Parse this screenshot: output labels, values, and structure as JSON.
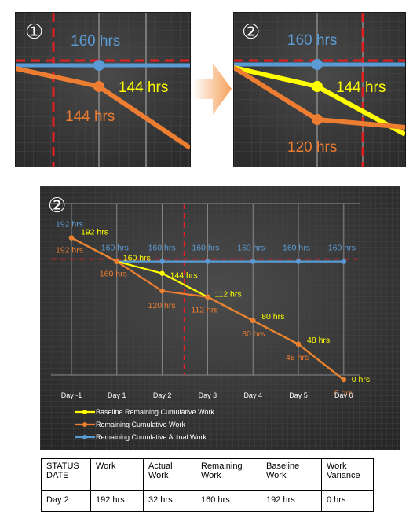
{
  "zoom1": {
    "badge": "①",
    "labels": {
      "actual": "160 hrs",
      "baseline": "144 hrs",
      "remaining": "144 hrs"
    }
  },
  "zoom2": {
    "badge": "②",
    "labels": {
      "actual": "160 hrs",
      "baseline": "144 hrs",
      "remaining": "120 hrs"
    }
  },
  "colors": {
    "actual": "#5b9bd5",
    "remaining": "#ed7d31",
    "baseline": "#ffff00",
    "status": "#e02020",
    "bg": "#3a3a3a"
  },
  "chart_data": {
    "type": "line",
    "badge": "②",
    "categories": [
      "Day -1",
      "Day 1",
      "Day 2",
      "Day 3",
      "Day 4",
      "Day 5",
      "Day 6"
    ],
    "status_date": "Day 2",
    "status_value": 160,
    "ylim": [
      0,
      200
    ],
    "grid": true,
    "legend_position": "bottom-left",
    "series": [
      {
        "name": "Baseline Remaining Cumulative Work",
        "color": "#ffff00",
        "values": [
          192,
          160,
          144,
          112,
          80,
          48,
          0
        ],
        "labels": [
          "192 hrs",
          "160 hrs",
          "144 hrs",
          "112 hrs",
          "80 hrs",
          "48 hrs",
          "0 hrs"
        ]
      },
      {
        "name": "Remaining Cumulative Work",
        "color": "#ed7d31",
        "values": [
          192,
          160,
          120,
          112,
          80,
          48,
          0
        ],
        "labels": [
          "192 hrs",
          "160 hrs",
          "120 hrs",
          "112 hrs",
          "80 hrs",
          "48 hrs",
          "0 hrs"
        ]
      },
      {
        "name": "Remaining Cumulative Actual Work",
        "color": "#5b9bd5",
        "values": [
          192,
          160,
          160,
          160,
          160,
          160,
          160
        ],
        "labels": [
          "192 hrs",
          "160 hrs",
          "160 hrs",
          "160 hrs",
          "160 hrs",
          "160 hrs",
          "160 hrs"
        ]
      }
    ]
  },
  "table": {
    "headers": [
      "STATUS DATE",
      "Work",
      "Actual Work",
      "Remaining Work",
      "Baseline Work",
      "Work Variance"
    ],
    "row": [
      "Day 2",
      "192 hrs",
      "32 hrs",
      "160 hrs",
      "192 hrs",
      "0 hrs"
    ]
  }
}
